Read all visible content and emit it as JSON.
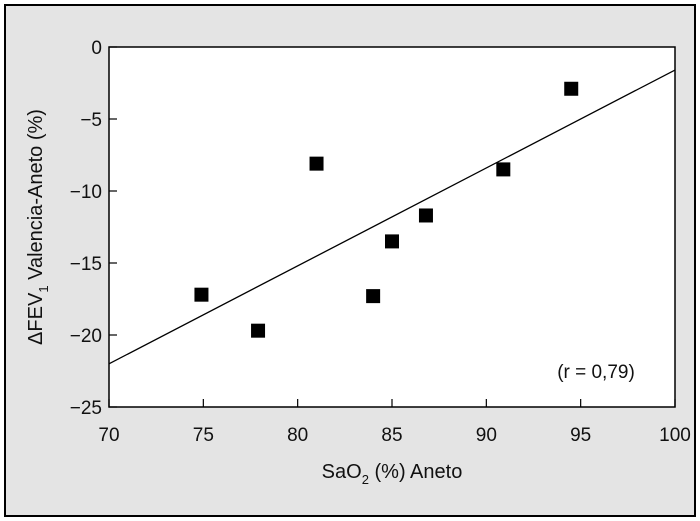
{
  "chart_data": {
    "type": "scatter",
    "title": "",
    "xlabel_parts": {
      "main": "SaO",
      "sub": "2",
      "rest": " (%) Aneto"
    },
    "ylabel_parts": {
      "prefix": "ΔFEV",
      "sub": "1",
      "rest": " Valencia-Aneto (%)"
    },
    "xlim": [
      70,
      100
    ],
    "ylim": [
      -25,
      0
    ],
    "x_ticks": [
      70,
      75,
      80,
      85,
      90,
      95,
      100
    ],
    "y_ticks": [
      0,
      -5,
      -10,
      -15,
      -20,
      -25
    ],
    "x_tick_labels": [
      "70",
      "75",
      "80",
      "85",
      "90",
      "95",
      "100"
    ],
    "y_tick_labels": [
      "0",
      "−5",
      "−10",
      "−15",
      "−20",
      "−25"
    ],
    "points": [
      {
        "x": 74.9,
        "y": -17.2
      },
      {
        "x": 77.9,
        "y": -19.7
      },
      {
        "x": 81.0,
        "y": -8.1
      },
      {
        "x": 84.0,
        "y": -17.3
      },
      {
        "x": 85.0,
        "y": -13.5
      },
      {
        "x": 86.8,
        "y": -11.7
      },
      {
        "x": 90.9,
        "y": -8.5
      },
      {
        "x": 94.5,
        "y": -2.9
      }
    ],
    "fit_line": {
      "x": [
        70,
        100
      ],
      "y": [
        -22.0,
        -1.6
      ]
    },
    "annotation": "(r = 0,79)",
    "grid": false,
    "marker": "square",
    "colors": {
      "marker": "#000000",
      "line": "#000000",
      "background": "#e4e4e4"
    }
  }
}
